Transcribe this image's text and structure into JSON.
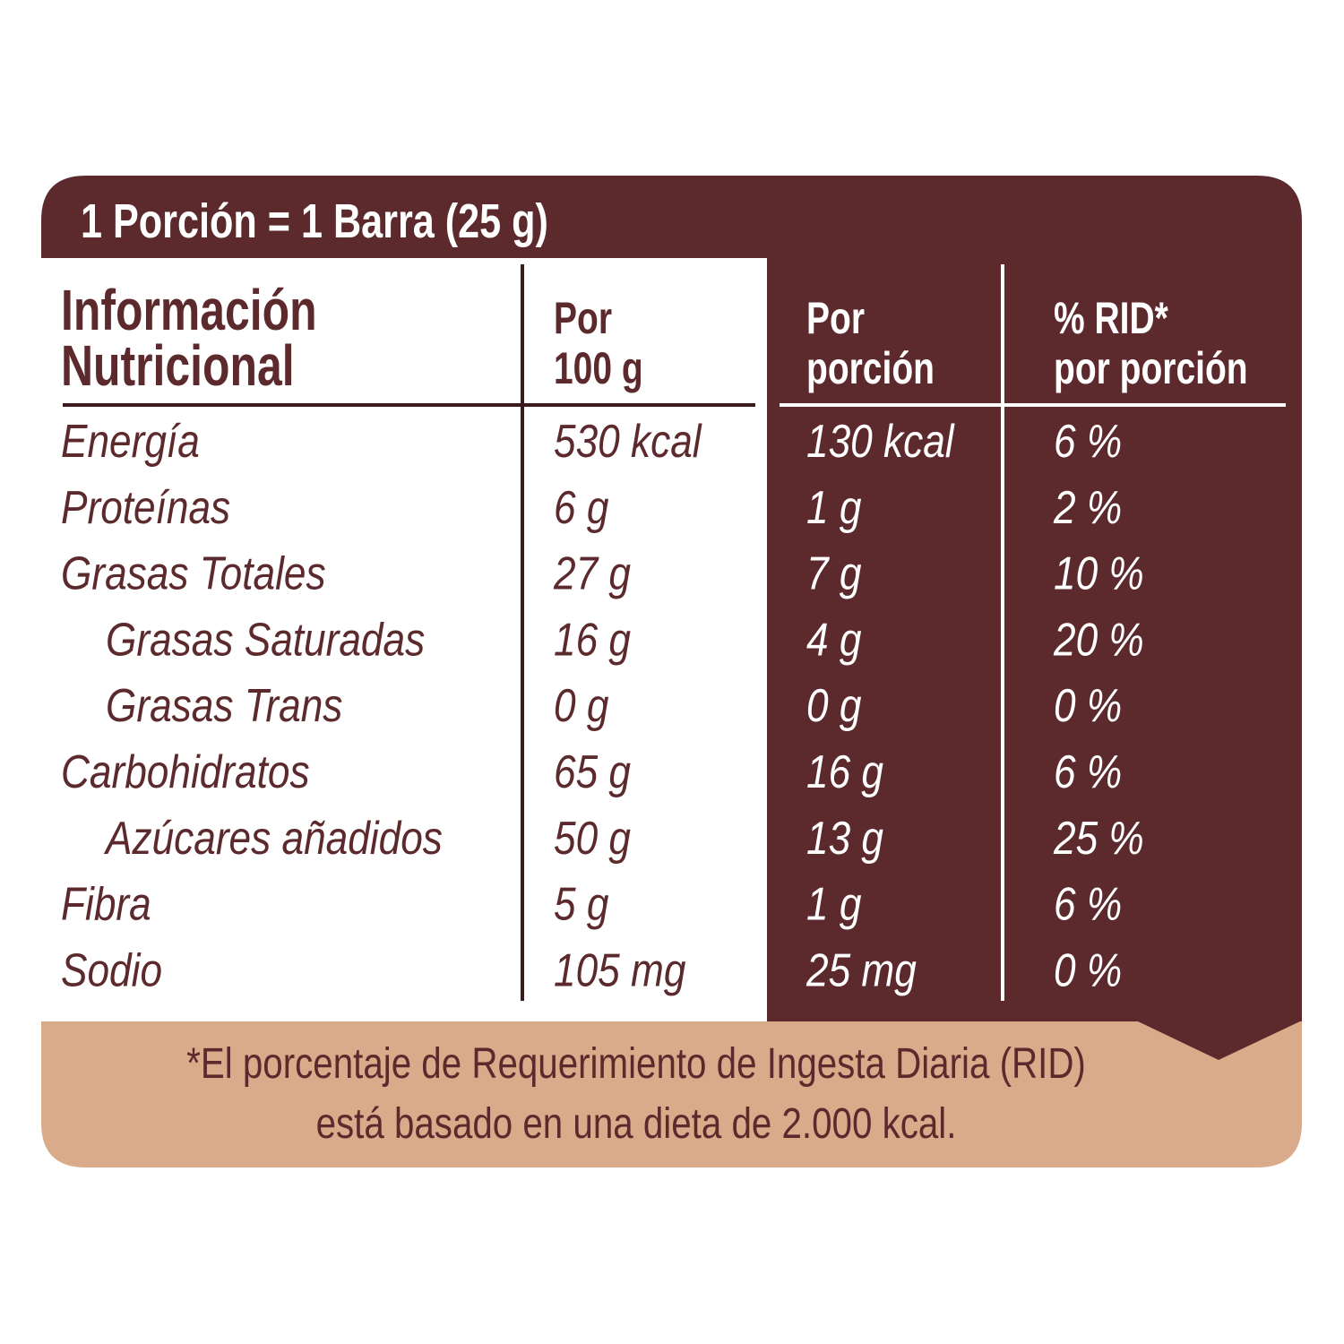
{
  "header": {
    "serving": "1 Porción = 1 Barra (25 g)"
  },
  "table": {
    "columns": [
      [
        "Información",
        "Nutricional"
      ],
      [
        "Por",
        "100 g"
      ],
      [
        "Por",
        "porción"
      ],
      [
        "% RID*",
        "por porción"
      ]
    ],
    "rows": [
      [
        "Energía",
        "530 kcal",
        "130 kcal",
        "6 %"
      ],
      [
        "Proteínas",
        "6 g",
        "1 g",
        "2 %"
      ],
      [
        "Grasas Totales",
        "27 g",
        "7 g",
        "10 %"
      ],
      [
        "Grasas Saturadas",
        "16 g",
        "4 g",
        "20 %"
      ],
      [
        "Grasas Trans",
        "0 g",
        "0 g",
        "0 %"
      ],
      [
        "Carbohidratos",
        "65 g",
        "16 g",
        "6 %"
      ],
      [
        "Azúcares añadidos",
        "50 g",
        "13 g",
        "25 %"
      ],
      [
        "Fibra",
        "5 g",
        "1 g",
        "6 %"
      ],
      [
        "Sodio",
        "105 mg",
        "25 mg",
        "0 %"
      ]
    ]
  },
  "footnote": [
    "*El porcentaje de Requerimiento de Ingesta Diaria (RID)",
    "está basado en una dieta de 2.000 kcal."
  ]
}
